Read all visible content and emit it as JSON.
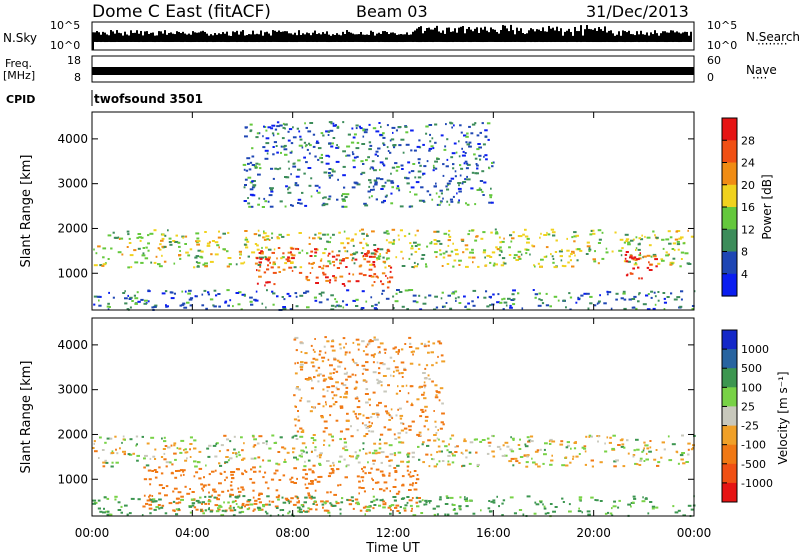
{
  "header": {
    "station": "Dome C East (fitACF)",
    "beam": "Beam 03",
    "date": "31/Dec/2013"
  },
  "top_panels": {
    "nsky_label": "N.Sky",
    "nsearch_label": "N.Search",
    "nsearch_dots": "········",
    "ticks_left_hi": "10^5",
    "ticks_left_lo": "10^0",
    "ticks_right_hi": "10^5",
    "ticks_right_lo": "10^0",
    "freq_label": "Freq.",
    "freq_unit": "[MHz]",
    "freq_ticks": [
      "18",
      "8"
    ],
    "nave_label": "Nave",
    "nave_dots": "····",
    "nave_ticks": [
      "60",
      "0"
    ],
    "cpid_label": "CPID",
    "cpid_value": "twofsound 3501"
  },
  "x_axis": {
    "label": "Time UT",
    "ticks": [
      "00:00",
      "04:00",
      "08:00",
      "12:00",
      "16:00",
      "20:00",
      "00:00"
    ]
  },
  "y_axis": {
    "label": "Slant Range [km]",
    "ticks": [
      "1000",
      "2000",
      "3000",
      "4000"
    ]
  },
  "power_scale": {
    "label": "Power [dB]",
    "ticks": [
      "4",
      "8",
      "12",
      "16",
      "20",
      "24",
      "28"
    ],
    "colors": [
      "#0a1ef0",
      "#1e46b4",
      "#3c8c5a",
      "#64c83c",
      "#f0d21e",
      "#f08c14",
      "#f05014",
      "#e61414"
    ]
  },
  "velocity_scale": {
    "label": "Velocity [m s⁻¹]",
    "ticks": [
      "1000",
      "500",
      "100",
      "25",
      "-25",
      "-100",
      "-500",
      "-1000"
    ],
    "colors": [
      "#1428c8",
      "#2864a0",
      "#3c9650",
      "#78d246",
      "#c8c8bc",
      "#f0a028",
      "#f07814",
      "#f05014",
      "#e61414"
    ]
  },
  "chart_data": [
    {
      "type": "heatmap",
      "title": "Power",
      "xlabel": "Time UT",
      "ylabel": "Slant Range [km]",
      "xlim": [
        "00:00",
        "24:00"
      ],
      "ylim": [
        180,
        4600
      ],
      "colorbar": "Power [dB]",
      "colorbar_range": [
        0,
        32
      ],
      "bands": [
        {
          "t0": 0,
          "t1": 24,
          "r0": 1150,
          "r1": 2000,
          "value": 16
        },
        {
          "t0": 6.5,
          "t1": 12,
          "r0": 700,
          "r1": 1600,
          "value": 26
        },
        {
          "t0": 21,
          "t1": 22.5,
          "r0": 900,
          "r1": 1500,
          "value": 28
        },
        {
          "t0": 0,
          "t1": 24,
          "r0": 200,
          "r1": 650,
          "value": 8
        },
        {
          "t0": 6,
          "t1": 16,
          "r0": 2500,
          "r1": 4400,
          "value": 8
        }
      ]
    },
    {
      "type": "heatmap",
      "title": "Velocity",
      "xlabel": "Time UT",
      "ylabel": "Slant Range [km]",
      "xlim": [
        "00:00",
        "24:00"
      ],
      "ylim": [
        180,
        4600
      ],
      "colorbar": "Velocity [m s⁻¹]",
      "colorbar_range": [
        -1000,
        1000
      ],
      "bands": [
        {
          "t0": 0,
          "t1": 24,
          "r0": 1300,
          "r1": 2000,
          "value": 0
        },
        {
          "t0": 2,
          "t1": 13,
          "r0": 300,
          "r1": 1300,
          "value": -300
        },
        {
          "t0": 0,
          "t1": 24,
          "r0": 200,
          "r1": 650,
          "value": 150
        },
        {
          "t0": 8,
          "t1": 14,
          "r0": 2000,
          "r1": 4200,
          "value": -100
        }
      ]
    }
  ]
}
